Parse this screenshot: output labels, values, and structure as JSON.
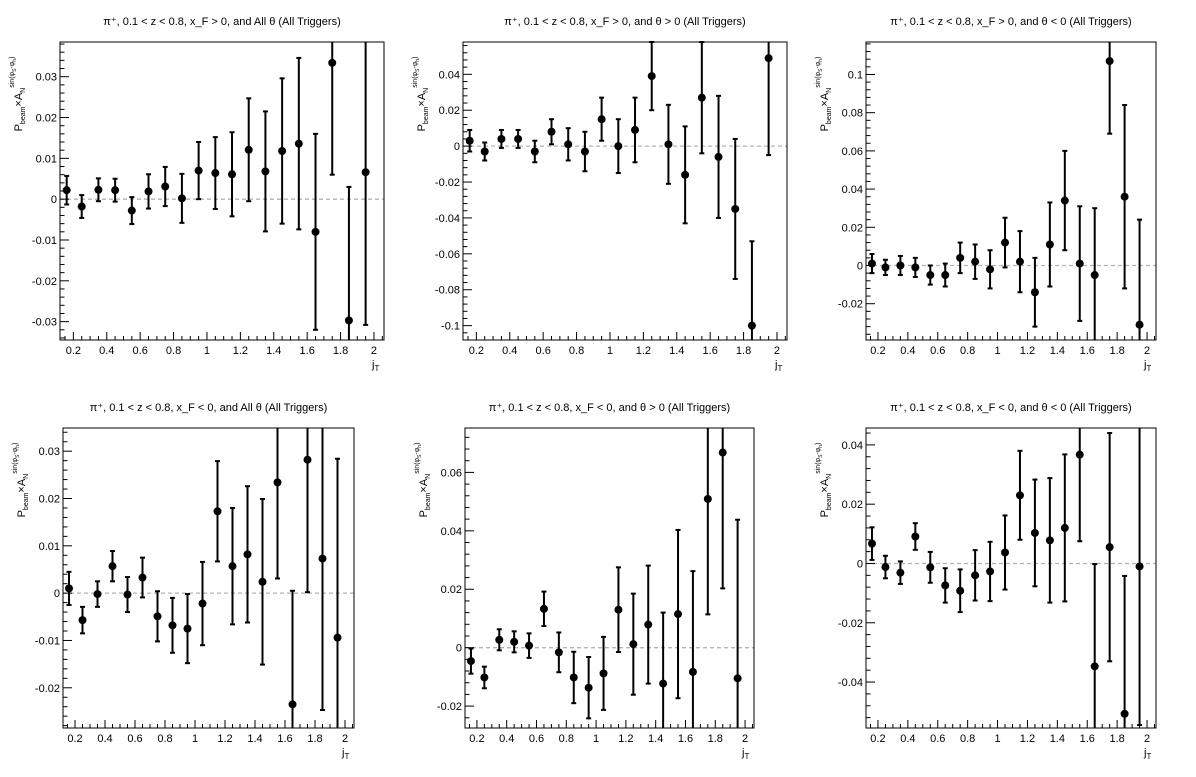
{
  "chart_data": [
    {
      "type": "scatter",
      "title": "π⁺, 0.1 < z < 0.8, x_F > 0, and All θ (All Triggers)",
      "xlabel": "j_T",
      "ylabel": "P_beam×A_N^sin(φ_S−φ_h)",
      "xlim": [
        0.12,
        2.06
      ],
      "ylim": [
        -0.0345,
        0.0385
      ],
      "xticks": [
        0.2,
        0.4,
        0.6,
        0.8,
        1,
        1.2,
        1.4,
        1.6,
        1.8,
        2
      ],
      "xtick_labels": [
        "0.2",
        "0.4",
        "0.6",
        "0.8",
        "1",
        "1.2",
        "1.4",
        "1.6",
        "1.8",
        "2"
      ],
      "yticks": [
        -0.03,
        -0.02,
        -0.01,
        0,
        0.01,
        0.02,
        0.03
      ],
      "ytick_labels": [
        "-0.03",
        "-0.02",
        "-0.01",
        "0",
        "0.01",
        "0.02",
        "0.03"
      ],
      "x": [
        0.16,
        0.25,
        0.35,
        0.45,
        0.55,
        0.65,
        0.75,
        0.85,
        0.95,
        1.05,
        1.15,
        1.25,
        1.35,
        1.45,
        1.55,
        1.65,
        1.75,
        1.85,
        1.95
      ],
      "y": [
        0.0022,
        -0.0018,
        0.0023,
        0.0022,
        -0.0028,
        0.0019,
        0.0031,
        0.0002,
        0.007,
        0.0064,
        0.0061,
        0.0121,
        0.0068,
        0.0118,
        0.0136,
        -0.008,
        0.0334,
        -0.0297,
        0.0066
      ],
      "yerr": [
        0.0035,
        0.0028,
        0.0028,
        0.0028,
        0.0033,
        0.0042,
        0.0048,
        0.006,
        0.007,
        0.0088,
        0.0103,
        0.0126,
        0.0147,
        0.0178,
        0.021,
        0.024,
        0.0274,
        0.0327,
        0.0374
      ]
    },
    {
      "type": "scatter",
      "title": "π⁺, 0.1 < z < 0.8, x_F > 0, and θ > 0 (All Triggers)",
      "xlabel": "j_T",
      "ylabel": "P_beam×A_N^sin(φ_S−φ_h)",
      "xlim": [
        0.12,
        2.06
      ],
      "ylim": [
        -0.108,
        0.058
      ],
      "xticks": [
        0.2,
        0.4,
        0.6,
        0.8,
        1,
        1.2,
        1.4,
        1.6,
        1.8,
        2
      ],
      "xtick_labels": [
        "0.2",
        "0.4",
        "0.6",
        "0.8",
        "1",
        "1.2",
        "1.4",
        "1.6",
        "1.8",
        "2"
      ],
      "yticks": [
        -0.1,
        -0.08,
        -0.06,
        -0.04,
        -0.02,
        0,
        0.02,
        0.04
      ],
      "ytick_labels": [
        "-0.1",
        "-0.08",
        "-0.06",
        "-0.04",
        "-0.02",
        "0",
        "0.02",
        "0.04"
      ],
      "x": [
        0.16,
        0.25,
        0.35,
        0.45,
        0.55,
        0.65,
        0.75,
        0.85,
        0.95,
        1.05,
        1.15,
        1.25,
        1.35,
        1.45,
        1.55,
        1.65,
        1.75,
        1.85,
        1.95
      ],
      "y": [
        0.003,
        -0.003,
        0.004,
        0.004,
        -0.003,
        0.008,
        0.001,
        -0.003,
        0.015,
        0.0,
        0.009,
        0.039,
        0.001,
        -0.016,
        0.027,
        -0.006,
        -0.035,
        -0.1,
        0.049
      ],
      "yerr": [
        0.006,
        0.005,
        0.005,
        0.005,
        0.006,
        0.007,
        0.009,
        0.011,
        0.012,
        0.015,
        0.018,
        0.019,
        0.022,
        0.027,
        0.031,
        0.034,
        0.039,
        0.047,
        0.054
      ]
    },
    {
      "type": "scatter",
      "title": "π⁺, 0.1 < z < 0.8, x_F > 0, and θ < 0 (All Triggers)",
      "xlabel": "j_T",
      "ylabel": "P_beam×A_N^sin(φ_S−φ_h)",
      "xlim": [
        0.12,
        2.06
      ],
      "ylim": [
        -0.039,
        0.117
      ],
      "xticks": [
        0.2,
        0.4,
        0.6,
        0.8,
        1,
        1.2,
        1.4,
        1.6,
        1.8,
        2
      ],
      "xtick_labels": [
        "0.2",
        "0.4",
        "0.6",
        "0.8",
        "1",
        "1.2",
        "1.4",
        "1.6",
        "1.8",
        "2"
      ],
      "yticks": [
        -0.02,
        0,
        0.02,
        0.04,
        0.06,
        0.08,
        0.1
      ],
      "ytick_labels": [
        "-0.02",
        "0",
        "0.02",
        "0.04",
        "0.06",
        "0.08",
        "0.1"
      ],
      "x": [
        0.16,
        0.25,
        0.35,
        0.45,
        0.55,
        0.65,
        0.75,
        0.85,
        0.95,
        1.05,
        1.15,
        1.25,
        1.35,
        1.45,
        1.55,
        1.65,
        1.75,
        1.85,
        1.95
      ],
      "y": [
        0.001,
        -0.001,
        0.0,
        -0.001,
        -0.005,
        -0.005,
        0.004,
        0.002,
        -0.002,
        0.012,
        0.002,
        -0.014,
        0.011,
        0.034,
        0.001,
        -0.005,
        0.107,
        0.036,
        -0.031
      ],
      "yerr": [
        0.005,
        0.004,
        0.005,
        0.005,
        0.005,
        0.006,
        0.008,
        0.009,
        0.01,
        0.013,
        0.016,
        0.018,
        0.022,
        0.026,
        0.03,
        0.035,
        0.038,
        0.048,
        0.055
      ]
    },
    {
      "type": "scatter",
      "title": "π⁺, 0.1 < z < 0.8, x_F < 0, and All θ (All Triggers)",
      "xlabel": "j_T",
      "ylabel": "P_beam×A_N^sin(φ_S−φ_h)",
      "xlim": [
        0.12,
        2.06
      ],
      "ylim": [
        -0.0285,
        0.0349
      ],
      "xticks": [
        0.2,
        0.4,
        0.6,
        0.8,
        1,
        1.2,
        1.4,
        1.6,
        1.8,
        2
      ],
      "xtick_labels": [
        "0.2",
        "0.4",
        "0.6",
        "0.8",
        "1",
        "1.2",
        "1.4",
        "1.6",
        "1.8",
        "2"
      ],
      "yticks": [
        -0.02,
        -0.01,
        0,
        0.01,
        0.02,
        0.03
      ],
      "ytick_labels": [
        "-0.02",
        "-0.01",
        "0",
        "0.01",
        "0.02",
        "0.03"
      ],
      "x": [
        0.16,
        0.25,
        0.35,
        0.45,
        0.55,
        0.65,
        0.75,
        0.85,
        0.95,
        1.05,
        1.15,
        1.25,
        1.35,
        1.45,
        1.55,
        1.65,
        1.75,
        1.85,
        1.95
      ],
      "y": [
        0.001,
        -0.0057,
        -0.0002,
        0.0057,
        -0.0003,
        0.0033,
        -0.0049,
        -0.0068,
        -0.0075,
        -0.0022,
        0.0173,
        0.0057,
        0.0082,
        0.0024,
        0.0234,
        -0.0235,
        0.0282,
        0.0073,
        -0.0094
      ],
      "yerr": [
        0.0035,
        0.0028,
        0.0027,
        0.0032,
        0.0037,
        0.0042,
        0.0053,
        0.0058,
        0.0073,
        0.0088,
        0.0106,
        0.0123,
        0.0144,
        0.0175,
        0.0203,
        0.024,
        0.028,
        0.032,
        0.0378
      ]
    },
    {
      "type": "scatter",
      "title": "π⁺, 0.1 < z < 0.8, x_F < 0, and θ > 0 (All Triggers)",
      "xlabel": "j_T",
      "ylabel": "P_beam×A_N^sin(φ_S−φ_h)",
      "xlim": [
        0.12,
        2.06
      ],
      "ylim": [
        -0.0275,
        0.0752
      ],
      "xticks": [
        0.2,
        0.4,
        0.6,
        0.8,
        1,
        1.2,
        1.4,
        1.6,
        1.8,
        2
      ],
      "xtick_labels": [
        "0.2",
        "0.4",
        "0.6",
        "0.8",
        "1",
        "1.2",
        "1.4",
        "1.6",
        "1.8",
        "2"
      ],
      "yticks": [
        -0.02,
        0,
        0.02,
        0.04,
        0.06
      ],
      "ytick_labels": [
        "-0.02",
        "0",
        "0.02",
        "0.04",
        "0.06"
      ],
      "x": [
        0.16,
        0.25,
        0.35,
        0.45,
        0.55,
        0.65,
        0.75,
        0.85,
        0.95,
        1.05,
        1.15,
        1.25,
        1.35,
        1.45,
        1.55,
        1.65,
        1.75,
        1.85,
        1.95
      ],
      "y": [
        -0.0046,
        -0.0102,
        0.0027,
        0.002,
        0.0007,
        0.0133,
        -0.0016,
        -0.0102,
        -0.0137,
        -0.0088,
        0.013,
        0.0012,
        0.0079,
        -0.0123,
        0.0115,
        -0.0083,
        0.0509,
        0.0668,
        -0.0105
      ],
      "yerr": [
        0.0043,
        0.0037,
        0.0036,
        0.0036,
        0.0042,
        0.0059,
        0.0068,
        0.0088,
        0.0105,
        0.0125,
        0.0145,
        0.0173,
        0.0202,
        0.0243,
        0.0288,
        0.0345,
        0.0395,
        0.0465,
        0.0543
      ]
    },
    {
      "type": "scatter",
      "title": "π⁺, 0.1 < z < 0.8, x_F < 0, and θ < 0 (All Triggers)",
      "xlabel": "j_T",
      "ylabel": "P_beam×A_N^sin(φ_S−φ_h)",
      "xlim": [
        0.12,
        2.06
      ],
      "ylim": [
        -0.0555,
        0.0457
      ],
      "xticks": [
        0.2,
        0.4,
        0.6,
        0.8,
        1,
        1.2,
        1.4,
        1.6,
        1.8,
        2
      ],
      "xtick_labels": [
        "0.2",
        "0.4",
        "0.6",
        "0.8",
        "1",
        "1.2",
        "1.4",
        "1.6",
        "1.8",
        "2"
      ],
      "yticks": [
        -0.04,
        -0.02,
        0,
        0.02,
        0.04
      ],
      "ytick_labels": [
        "-0.04",
        "-0.02",
        "0",
        "0.02",
        "0.04"
      ],
      "x": [
        0.16,
        0.25,
        0.35,
        0.45,
        0.55,
        0.65,
        0.75,
        0.85,
        0.95,
        1.05,
        1.15,
        1.25,
        1.35,
        1.45,
        1.55,
        1.65,
        1.75,
        1.85,
        1.95
      ],
      "y": [
        0.0067,
        -0.0012,
        -0.0031,
        0.0091,
        -0.0013,
        -0.0074,
        -0.0092,
        -0.004,
        -0.0027,
        0.0037,
        0.023,
        0.0103,
        0.0078,
        0.012,
        0.0367,
        -0.0347,
        0.0055,
        -0.0507,
        -0.001
      ],
      "yerr": [
        0.0055,
        0.0038,
        0.0038,
        0.0045,
        0.0052,
        0.0058,
        0.0072,
        0.0085,
        0.01,
        0.0125,
        0.015,
        0.018,
        0.021,
        0.0248,
        0.0292,
        0.0345,
        0.0385,
        0.0465,
        0.0535
      ]
    }
  ]
}
